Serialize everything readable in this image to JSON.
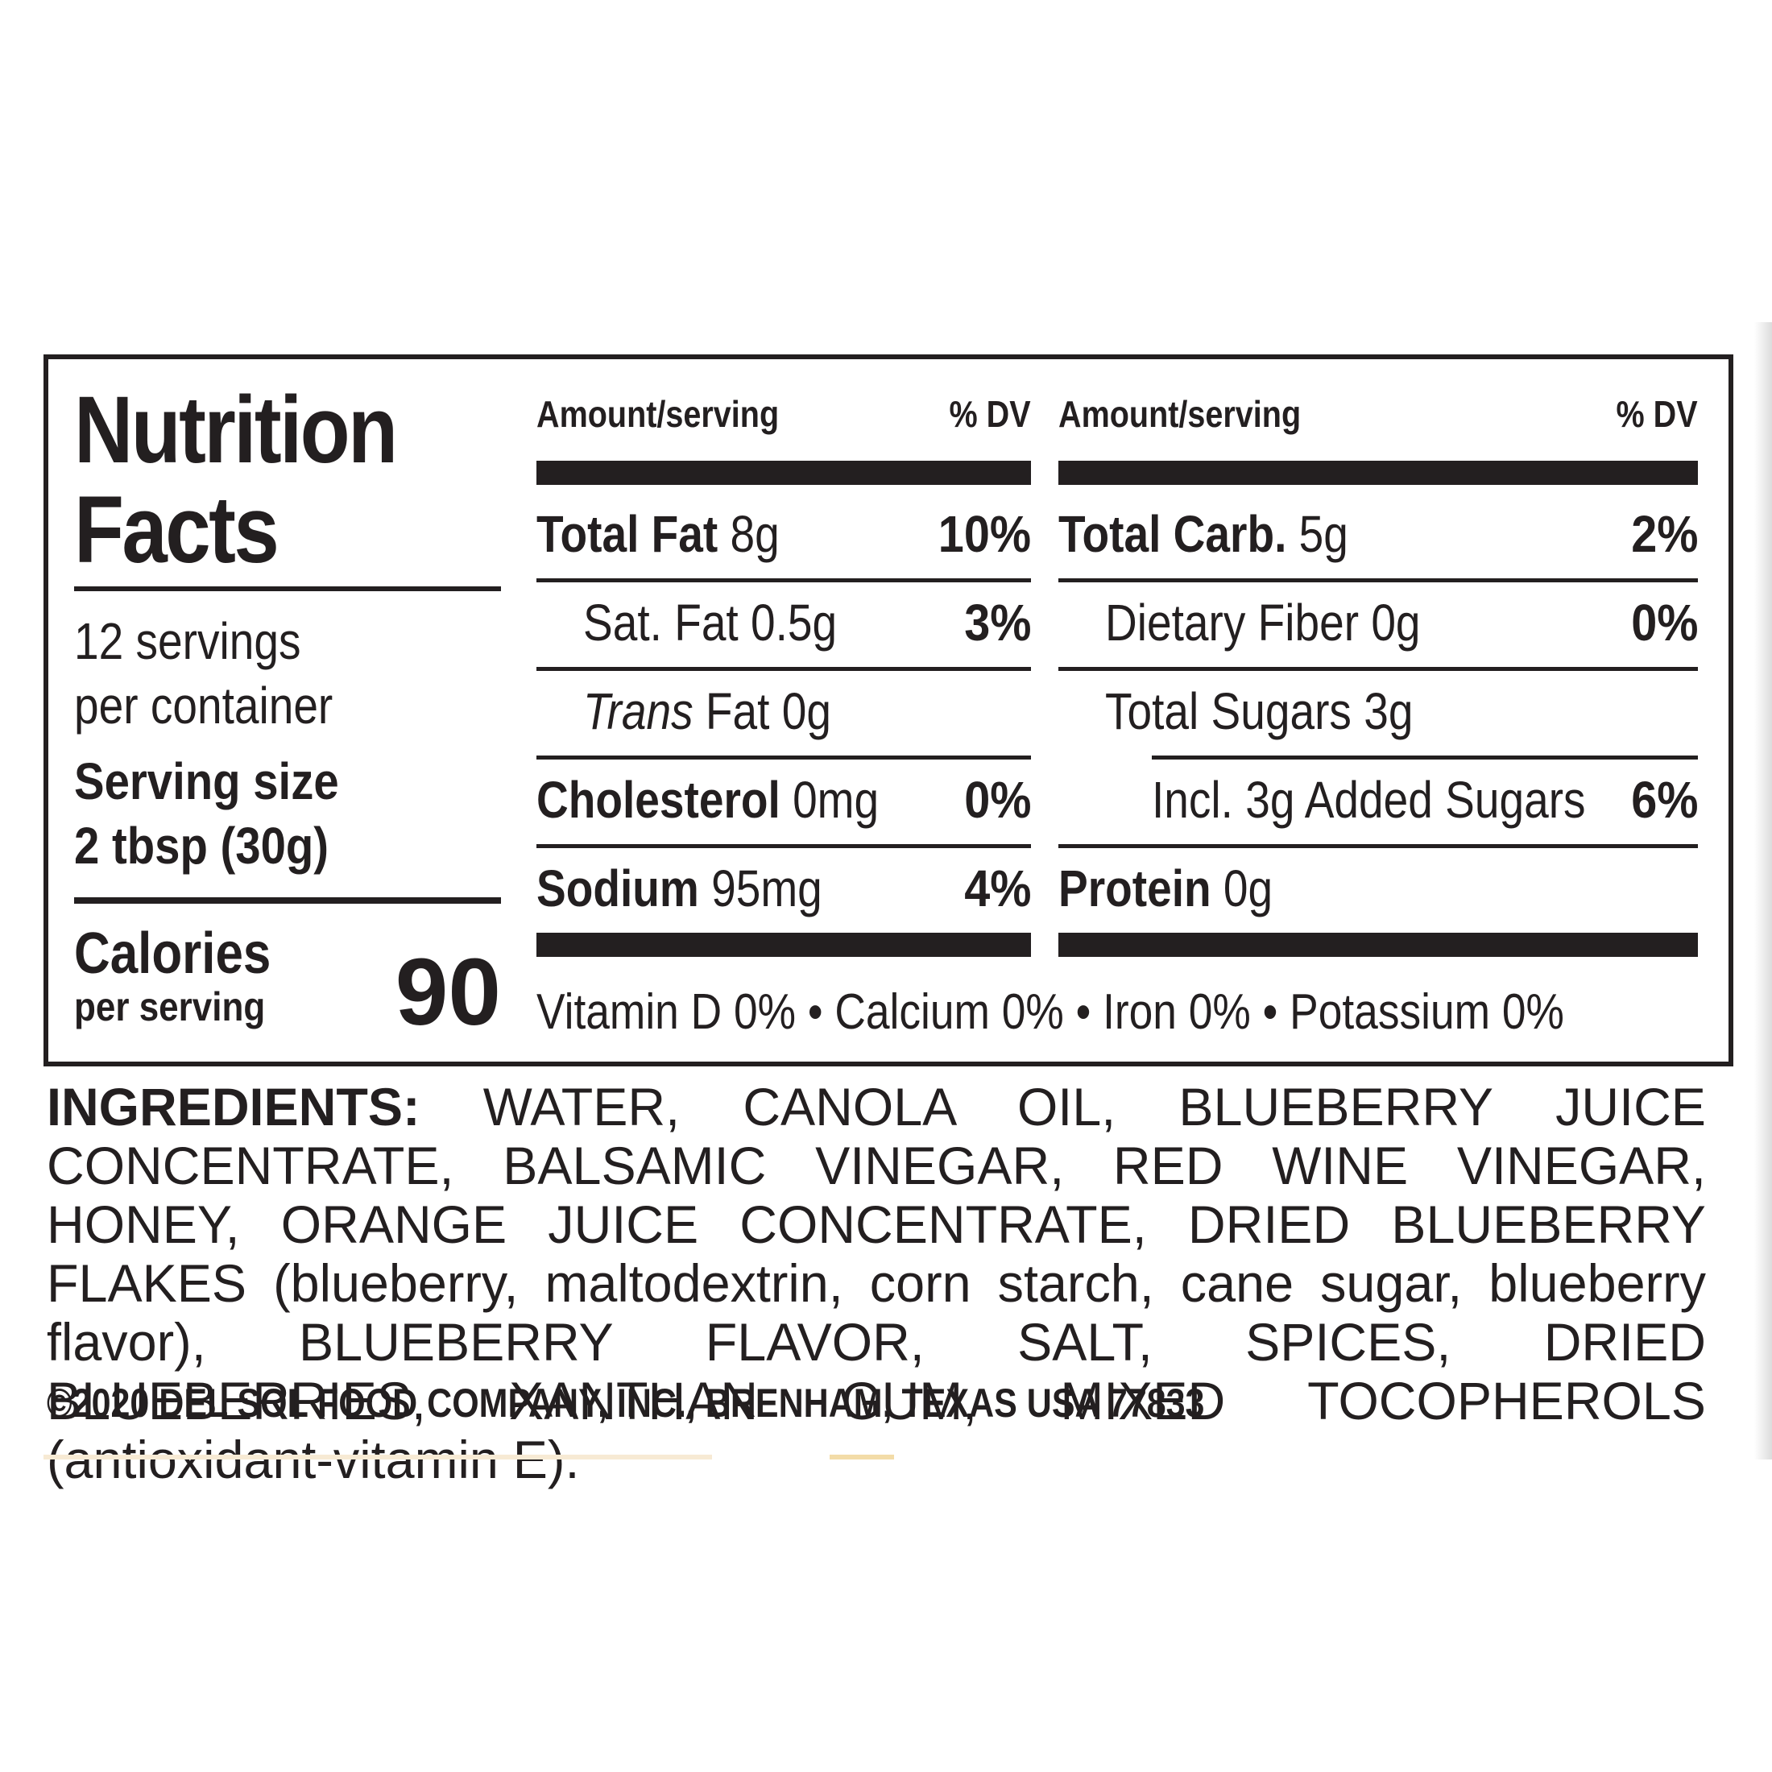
{
  "label": {
    "title_line1": "Nutrition",
    "title_line2": "Facts",
    "servings_line1": "12 servings",
    "servings_line2": "per container",
    "serving_size_label": "Serving size",
    "serving_size_value": "2 tbsp (30g)",
    "calories_label": "Calories",
    "calories_sub": "per serving",
    "calories_value": "90",
    "left_column": {
      "header_amount": "Amount/serving",
      "header_dv": "% DV",
      "rows": [
        {
          "name": "Total Fat",
          "amount": "8g",
          "dv": "10%"
        },
        {
          "name": "Sat. Fat",
          "amount": "0.5g",
          "dv": "3%"
        },
        {
          "name": "Trans",
          "suffix": "Fat 0g",
          "dv": ""
        },
        {
          "name": "Cholesterol",
          "amount": "0mg",
          "dv": "0%"
        },
        {
          "name": "Sodium",
          "amount": "95mg",
          "dv": "4%"
        }
      ]
    },
    "right_column": {
      "header_amount": "Amount/serving",
      "header_dv": "% DV",
      "rows": [
        {
          "name": "Total Carb.",
          "amount": "5g",
          "dv": "2%"
        },
        {
          "name": "Dietary Fiber",
          "amount": "0g",
          "dv": "0%"
        },
        {
          "name": "Total Sugars",
          "amount": "3g",
          "dv": ""
        },
        {
          "name": "Incl. 3g Added Sugars",
          "amount": "",
          "dv": "6%"
        },
        {
          "name": "Protein",
          "amount": "0g",
          "dv": ""
        }
      ]
    },
    "vitamins": "Vitamin D 0% • Calcium 0% • Iron 0% • Potassium 0%"
  },
  "ingredients": {
    "label": "INGREDIENTS:",
    "text": "WATER, CANOLA OIL, BLUEBERRY JUICE CONCENTRATE, BALSAMIC VINEGAR, RED WINE VINEGAR, HONEY, ORANGE JUICE CONCENTRATE, DRIED BLUEBERRY FLAKES (blueberry, maltodextrin, corn starch, cane sugar, blueberry flavor), BLUEBERRY FLAVOR, SALT, SPICES, DRIED BLUEBERRIES, XANTHAN GUM, MIXED TOCOPHEROLS (antioxidant-vitamin E)."
  },
  "copyright": "©2020 DEL SOL FOOD COMPANY, INC., BRENHAM, TEXAS  USA 77833",
  "colors": {
    "ink": "#231f20",
    "background": "#ffffff"
  }
}
